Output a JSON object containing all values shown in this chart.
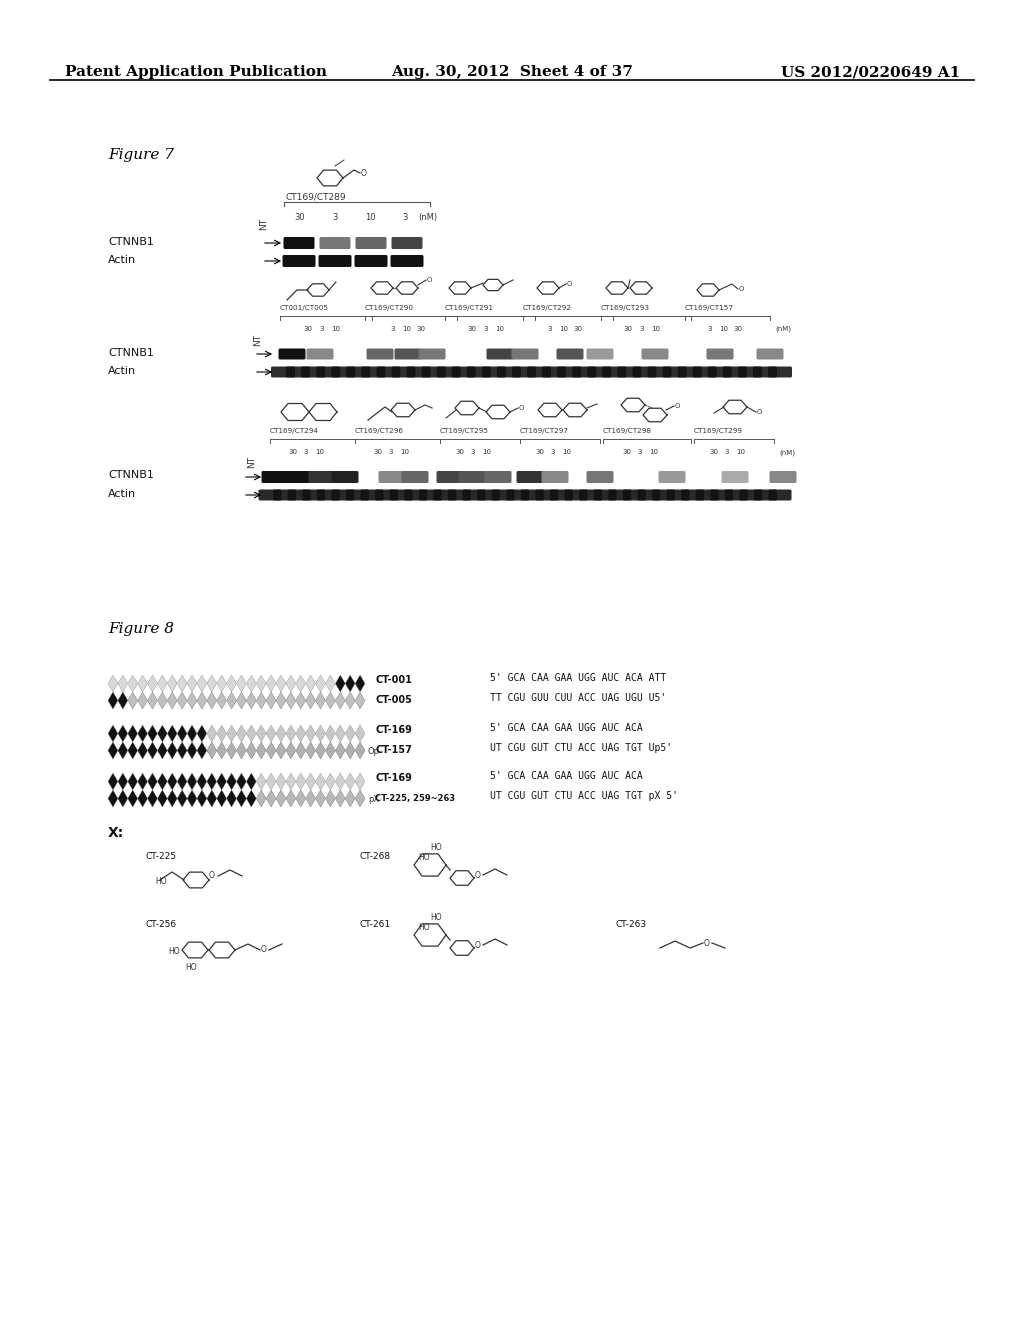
{
  "background_color": "#ffffff",
  "header_left": "Patent Application Publication",
  "header_center": "Aug. 30, 2012  Sheet 4 of 37",
  "header_right": "US 2012/0220649 A1",
  "fig7_label": "Figure 7",
  "fig8_label": "Figure 8",
  "x_label": "X:",
  "ct169_ct289": "CT169/CT289",
  "nM": "(nM)",
  "CTNNB1": "CTNNB1",
  "Actin": "Actin",
  "NT": "NT",
  "sect1_concs": [
    "30",
    "3",
    "10",
    "3"
  ],
  "sect2_labels": [
    "CT001/CT005",
    "CT169/CT290",
    "CT169/CT291",
    "CT169/CT292",
    "CT169/CT293",
    "CT169/CT157"
  ],
  "sect3_labels": [
    "CT169/CT294",
    "CT169/CT296",
    "CT169/CT295",
    "CT169/CT297",
    "CT169/CT298",
    "CT169/CT299"
  ],
  "seq1a": "5' GCA CAA GAA UGG AUC ACA ATT",
  "seq1b": "TT CGU GUU CUU ACC UAG UGU U5'",
  "seq2a": "5' GCA CAA GAA UGG AUC ACA",
  "seq2b": "UT CGU GUT CTU ACC UAG TGT Up5'",
  "seq3a": "5' GCA CAA GAA UGG AUC ACA",
  "seq3b": "UT CGU GUT CTU ACC UAG TGT pX 5'",
  "ct001": "CT-001",
  "ct005": "CT-005",
  "ct169a": "CT-169",
  "ct157": "CT-157",
  "ct169b": "CT-169",
  "ct225_263": "CT-225, 259~263",
  "ct225": "CT-225",
  "ct268": "CT-268",
  "ct256": "CT-256",
  "ct261": "CT-261",
  "ct263": "CT-263"
}
